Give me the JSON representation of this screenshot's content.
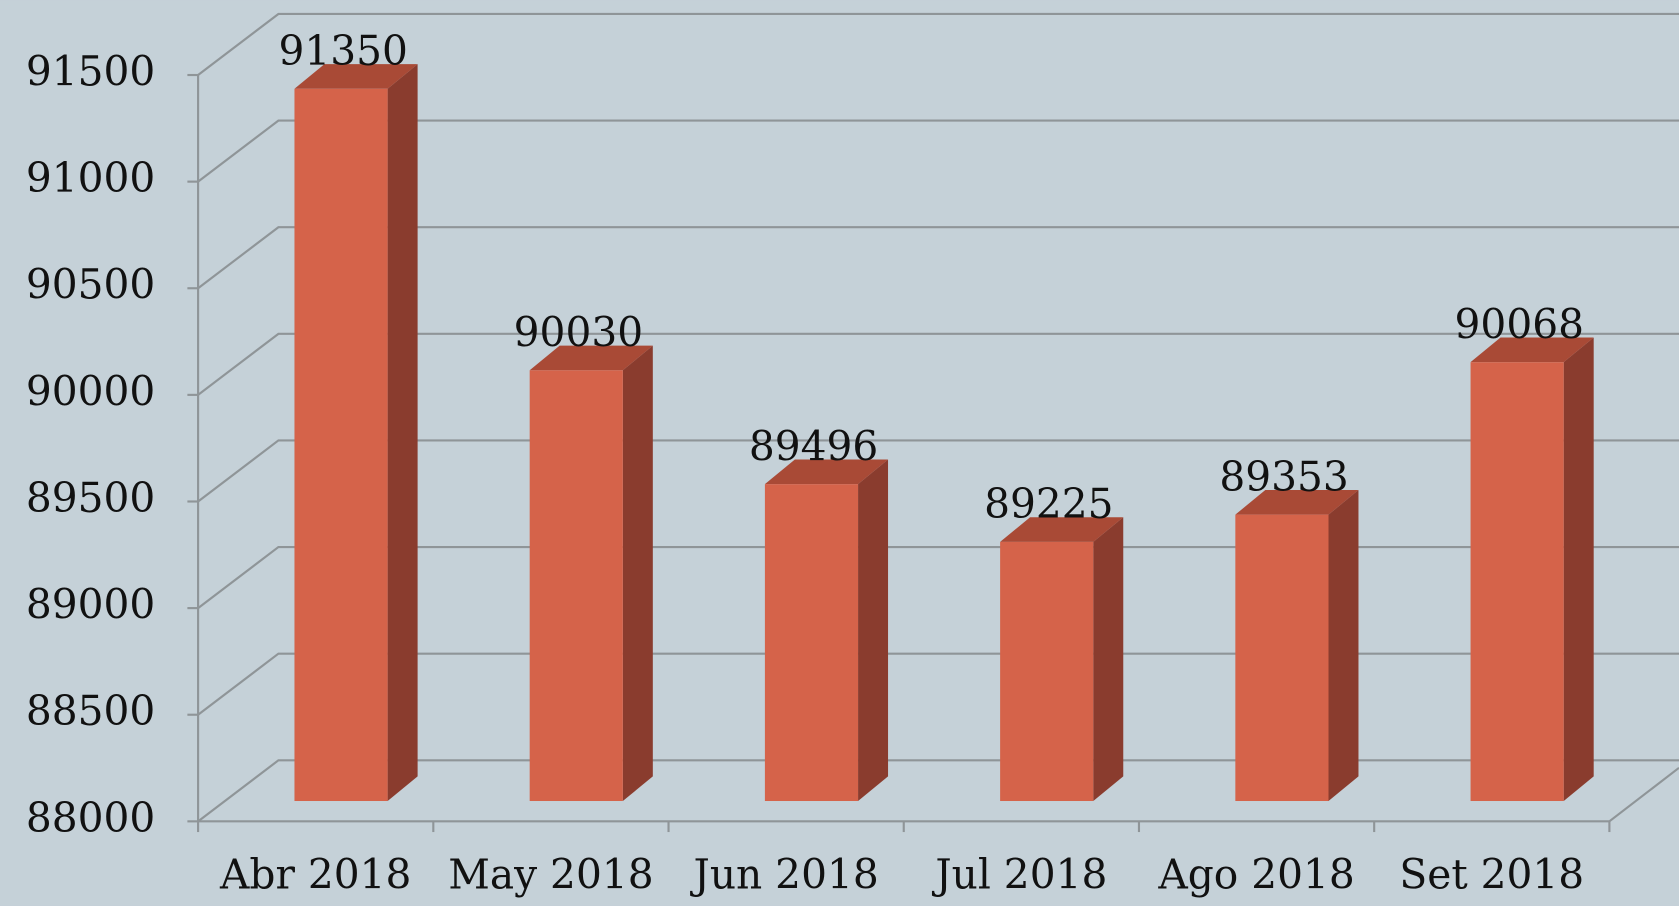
{
  "chart_data": {
    "type": "bar",
    "categories": [
      "Abr 2018",
      "May 2018",
      "Jun 2018",
      "Jul 2018",
      "Ago 2018",
      "Set 2018"
    ],
    "values": [
      91350,
      90030,
      89496,
      89225,
      89353,
      90068
    ],
    "color": "#d5634a",
    "ylim": [
      88000,
      91500
    ],
    "yticks": [
      88000,
      88500,
      89000,
      89500,
      90000,
      90500,
      91000,
      91500
    ],
    "grid": true
  }
}
